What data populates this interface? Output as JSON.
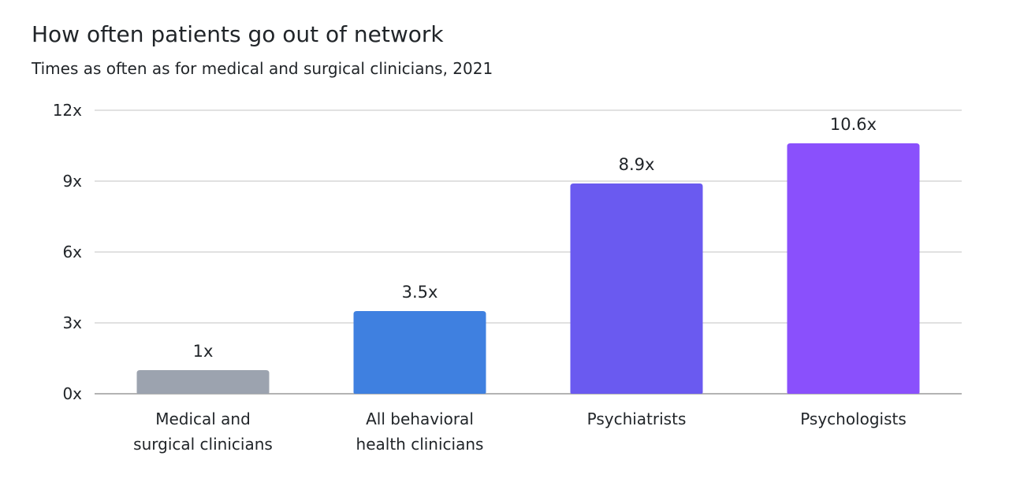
{
  "chart_data": {
    "type": "bar",
    "title": "How often patients go out of network",
    "subtitle": "Times as often as for medical and surgical clinicians, 2021",
    "categories": [
      [
        "Medical and",
        "surgical clinicians"
      ],
      [
        "All behavioral",
        "health clinicians"
      ],
      [
        "Psychiatrists"
      ],
      [
        "Psychologists"
      ]
    ],
    "values": [
      1,
      3.5,
      8.9,
      10.6
    ],
    "data_labels": [
      "1x",
      "3.5x",
      "8.9x",
      "10.6x"
    ],
    "colors": [
      "#9ca3af",
      "#3f80e0",
      "#6a5af0",
      "#8a50fc"
    ],
    "ylim": [
      0,
      12
    ],
    "yticks": [
      0,
      3,
      6,
      9,
      12
    ],
    "ytick_labels": [
      "0x",
      "3x",
      "6x",
      "9x",
      "12x"
    ],
    "grid": true,
    "legend": "none",
    "xlabel": "",
    "ylabel": ""
  }
}
